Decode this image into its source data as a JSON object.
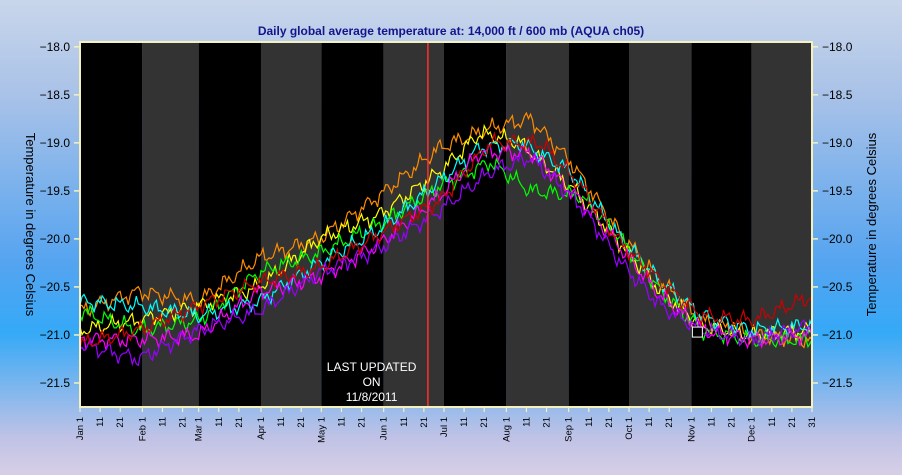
{
  "chart_data": {
    "type": "line",
    "title": "Daily global average temperature at: 14,000 ft / 600 mb (AQUA ch05)",
    "ylabel": "Temperature in degrees Celsius",
    "ylim": [
      -21.75,
      -17.95
    ],
    "yticks": [
      -18.0,
      -18.5,
      -19.0,
      -19.5,
      -20.0,
      -20.5,
      -21.0,
      -21.5
    ],
    "ytick_labels": [
      "−18.0",
      "−18.5",
      "−19.0",
      "−19.5",
      "−20.0",
      "−20.5",
      "−21.0",
      "−21.5"
    ],
    "months": [
      {
        "label": "Jan",
        "days": 31
      },
      {
        "label": "Feb",
        "days": 28
      },
      {
        "label": "Mar",
        "days": 31
      },
      {
        "label": "Apr",
        "days": 30
      },
      {
        "label": "May",
        "days": 31
      },
      {
        "label": "Jun",
        "days": 30
      },
      {
        "label": "Jul",
        "days": 31
      },
      {
        "label": "Aug",
        "days": 31
      },
      {
        "label": "Sep",
        "days": 30
      },
      {
        "label": "Oct",
        "days": 31
      },
      {
        "label": "Nov",
        "days": 30
      },
      {
        "label": "Dec",
        "days": 31
      }
    ],
    "day_ticks": [
      "11",
      "21"
    ],
    "end_tick": "31",
    "grid": false,
    "legend": "none",
    "annotation": {
      "lines": [
        "LAST UPDATED",
        "ON",
        "11/8/2011"
      ]
    },
    "marker": {
      "line_day": 174,
      "box_day": 308,
      "box_value": -20.97
    },
    "x_unit": "day_of_year",
    "series": [
      {
        "color": "#ff8c00",
        "points": [
          [
            1,
            -20.75
          ],
          [
            30,
            -20.55
          ],
          [
            60,
            -20.65
          ],
          [
            90,
            -20.2
          ],
          [
            120,
            -20.0
          ],
          [
            150,
            -19.55
          ],
          [
            180,
            -19.05
          ],
          [
            205,
            -18.85
          ],
          [
            225,
            -18.75
          ],
          [
            245,
            -19.2
          ],
          [
            270,
            -19.95
          ],
          [
            290,
            -20.45
          ],
          [
            310,
            -20.85
          ],
          [
            335,
            -21.0
          ],
          [
            365,
            -21.05
          ]
        ]
      },
      {
        "color": "#ffff00",
        "points": [
          [
            1,
            -20.95
          ],
          [
            30,
            -20.85
          ],
          [
            60,
            -20.7
          ],
          [
            90,
            -20.5
          ],
          [
            120,
            -20.0
          ],
          [
            150,
            -19.75
          ],
          [
            180,
            -19.3
          ],
          [
            200,
            -18.9
          ],
          [
            220,
            -19.0
          ],
          [
            245,
            -19.45
          ],
          [
            270,
            -20.05
          ],
          [
            290,
            -20.55
          ],
          [
            310,
            -20.9
          ],
          [
            335,
            -21.0
          ],
          [
            365,
            -20.95
          ]
        ]
      },
      {
        "color": "#00ff00",
        "points": [
          [
            1,
            -20.75
          ],
          [
            30,
            -20.95
          ],
          [
            60,
            -20.85
          ],
          [
            90,
            -20.35
          ],
          [
            120,
            -20.15
          ],
          [
            150,
            -19.85
          ],
          [
            180,
            -19.45
          ],
          [
            205,
            -19.2
          ],
          [
            225,
            -19.5
          ],
          [
            250,
            -19.55
          ],
          [
            270,
            -20.0
          ],
          [
            290,
            -20.55
          ],
          [
            310,
            -20.95
          ],
          [
            335,
            -21.05
          ],
          [
            365,
            -21.05
          ]
        ]
      },
      {
        "color": "#00ffff",
        "points": [
          [
            1,
            -20.65
          ],
          [
            30,
            -20.7
          ],
          [
            60,
            -20.8
          ],
          [
            90,
            -20.65
          ],
          [
            120,
            -20.25
          ],
          [
            150,
            -19.9
          ],
          [
            180,
            -19.4
          ],
          [
            200,
            -19.05
          ],
          [
            220,
            -19.0
          ],
          [
            245,
            -19.3
          ],
          [
            270,
            -20.0
          ],
          [
            290,
            -20.45
          ],
          [
            310,
            -20.8
          ],
          [
            335,
            -20.95
          ],
          [
            365,
            -20.9
          ]
        ]
      },
      {
        "color": "#ff00ff",
        "points": [
          [
            1,
            -21.05
          ],
          [
            30,
            -21.05
          ],
          [
            60,
            -21.0
          ],
          [
            90,
            -20.55
          ],
          [
            120,
            -20.4
          ],
          [
            150,
            -20.05
          ],
          [
            180,
            -19.55
          ],
          [
            200,
            -19.1
          ],
          [
            225,
            -19.1
          ],
          [
            250,
            -19.6
          ],
          [
            270,
            -20.1
          ],
          [
            290,
            -20.6
          ],
          [
            310,
            -20.95
          ],
          [
            335,
            -21.05
          ],
          [
            365,
            -21.0
          ]
        ]
      },
      {
        "color": "#9900ff",
        "points": [
          [
            1,
            -21.1
          ],
          [
            30,
            -21.25
          ],
          [
            60,
            -20.95
          ],
          [
            90,
            -20.75
          ],
          [
            120,
            -20.35
          ],
          [
            150,
            -20.1
          ],
          [
            180,
            -19.7
          ],
          [
            205,
            -19.3
          ],
          [
            225,
            -19.15
          ],
          [
            250,
            -19.65
          ],
          [
            270,
            -20.25
          ],
          [
            290,
            -20.7
          ],
          [
            310,
            -20.95
          ],
          [
            335,
            -21.05
          ],
          [
            365,
            -20.9
          ]
        ]
      },
      {
        "color": "#cc0000",
        "points": [
          [
            1,
            -21.1
          ],
          [
            30,
            -20.95
          ],
          [
            60,
            -20.7
          ],
          [
            90,
            -20.45
          ],
          [
            120,
            -20.3
          ],
          [
            150,
            -19.95
          ],
          [
            180,
            -19.6
          ],
          [
            205,
            -19.0
          ],
          [
            230,
            -19.0
          ],
          [
            250,
            -19.45
          ],
          [
            270,
            -20.05
          ],
          [
            290,
            -20.45
          ],
          [
            310,
            -20.8
          ],
          [
            335,
            -20.85
          ],
          [
            365,
            -20.6
          ]
        ]
      }
    ]
  }
}
